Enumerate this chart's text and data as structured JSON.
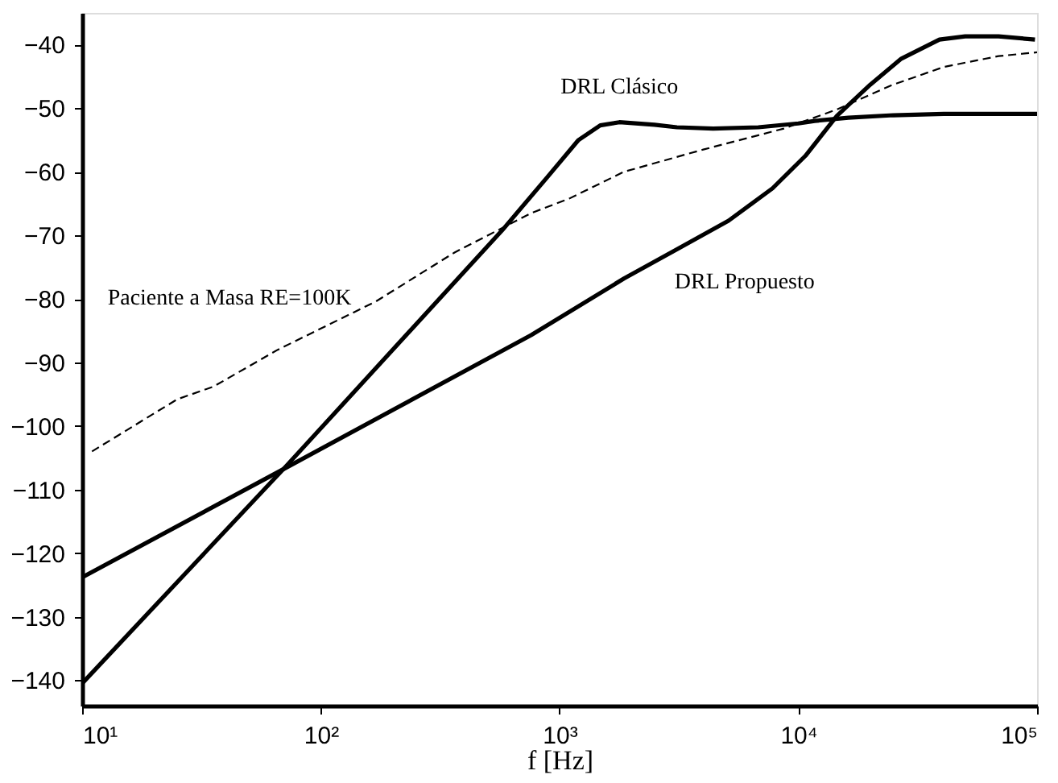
{
  "chart_data": {
    "type": "line",
    "xlabel": "f  [Hz]",
    "log": "x",
    "grid": false,
    "xlim": [
      10,
      100000
    ],
    "xticks": [
      {
        "value": 10,
        "label": "10¹"
      },
      {
        "value": 100,
        "label": "10²"
      },
      {
        "value": 1000,
        "label": "10³"
      },
      {
        "value": 10000,
        "label": "10⁴"
      },
      {
        "value": 100000,
        "label": "10⁵"
      }
    ],
    "ylim": [
      -144,
      -35
    ],
    "yticks": [
      -140,
      -130,
      -120,
      -110,
      -100,
      -90,
      -80,
      -70,
      -60,
      -50,
      -40
    ],
    "series": [
      {
        "name": "DRL Clásico",
        "color": "#000000",
        "line_style": "solid",
        "x": [
          10,
          72,
          575,
          890,
          1200,
          1480,
          1780,
          2500,
          3100,
          4400,
          6800,
          10000,
          11700,
          16200,
          25000,
          40700,
          69000,
          100000
        ],
        "values": [
          -140.5,
          -106.2,
          -69.2,
          -60.8,
          -55,
          -52.7,
          -52.2,
          -52.6,
          -53,
          -53.2,
          -53,
          -52.4,
          -52,
          -51.5,
          -51.1,
          -50.9,
          -50.9,
          -50.9
        ]
      },
      {
        "name": "DRL Propuesto",
        "color": "#000000",
        "line_style": "solid",
        "x": [
          10,
          72,
          760,
          1860,
          3100,
          5100,
          7800,
          10700,
          14500,
          20000,
          27000,
          39000,
          50000,
          69000,
          98000
        ],
        "values": [
          -123.8,
          -106.5,
          -85.7,
          -76.8,
          -72.2,
          -67.7,
          -62.6,
          -57.5,
          -51.2,
          -46.3,
          -42.2,
          -39.2,
          -38.7,
          -38.7,
          -39.2
        ]
      },
      {
        "name": "Paciente a Masa RE=100K",
        "color": "#000000",
        "line_style": "dashed",
        "x": [
          11,
          25,
          35.5,
          66,
          170,
          363,
          760,
          1100,
          1860,
          4000,
          8700,
          14500,
          24500,
          40700,
          69000,
          100000
        ],
        "values": [
          -104,
          -95.8,
          -93.8,
          -88,
          -80.4,
          -72.7,
          -66.5,
          -64.2,
          -60,
          -56.5,
          -53.2,
          -50.2,
          -46.4,
          -43.5,
          -41.8,
          -41.2
        ]
      }
    ]
  }
}
